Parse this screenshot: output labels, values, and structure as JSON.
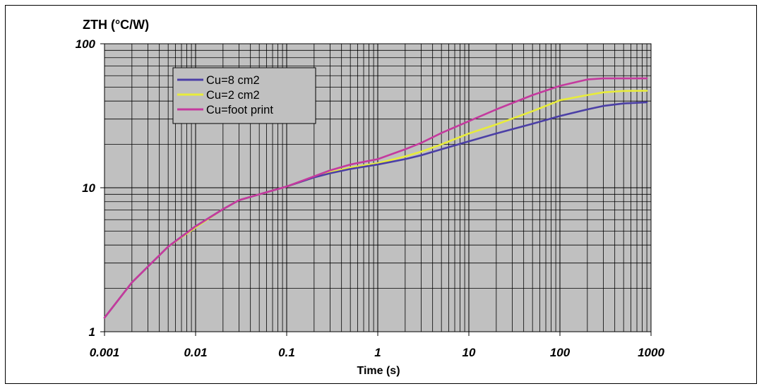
{
  "chart_data": {
    "type": "line",
    "title": "",
    "ylabel": "ZTH (°C/W)",
    "xlabel": "Time (s)",
    "x_scale": "log",
    "y_scale": "log",
    "xlim": [
      0.001,
      1000
    ],
    "ylim": [
      1,
      100
    ],
    "x_ticks": [
      "0.001",
      "0.01",
      "0.1",
      "1",
      "10",
      "100",
      "1000"
    ],
    "y_ticks": [
      "1",
      "10",
      "100"
    ],
    "grid": true,
    "legend_position": "top-left",
    "series": [
      {
        "name": "Cu=8 cm2",
        "color": "#4b3fa6",
        "points": [
          [
            0.001,
            1.25
          ],
          [
            0.002,
            2.2
          ],
          [
            0.005,
            3.9
          ],
          [
            0.01,
            5.4
          ],
          [
            0.02,
            7.1
          ],
          [
            0.03,
            8.2
          ],
          [
            0.05,
            9.0
          ],
          [
            0.1,
            10.2
          ],
          [
            0.2,
            11.8
          ],
          [
            0.3,
            12.6
          ],
          [
            0.5,
            13.5
          ],
          [
            1,
            14.5
          ],
          [
            2,
            15.8
          ],
          [
            3,
            16.8
          ],
          [
            5,
            18.5
          ],
          [
            10,
            21.0
          ],
          [
            20,
            23.8
          ],
          [
            50,
            27.8
          ],
          [
            100,
            31.5
          ],
          [
            200,
            35.0
          ],
          [
            300,
            37.0
          ],
          [
            500,
            38.5
          ],
          [
            900,
            39.2
          ]
        ]
      },
      {
        "name": "Cu=2 cm2",
        "color": "#e8ec3a",
        "points": [
          [
            0.001,
            1.25
          ],
          [
            0.002,
            2.2
          ],
          [
            0.005,
            3.9
          ],
          [
            0.01,
            5.3
          ],
          [
            0.02,
            7.1
          ],
          [
            0.03,
            8.2
          ],
          [
            0.05,
            9.0
          ],
          [
            0.1,
            10.2
          ],
          [
            0.2,
            11.8
          ],
          [
            0.3,
            12.8
          ],
          [
            0.5,
            13.8
          ],
          [
            1,
            14.8
          ],
          [
            2,
            16.5
          ],
          [
            3,
            17.8
          ],
          [
            5,
            20.0
          ],
          [
            10,
            23.8
          ],
          [
            20,
            27.5
          ],
          [
            50,
            34.0
          ],
          [
            100,
            40.5
          ],
          [
            200,
            44.0
          ],
          [
            300,
            46.0
          ],
          [
            500,
            47.0
          ],
          [
            900,
            47.2
          ]
        ]
      },
      {
        "name": "Cu=foot print",
        "color": "#c43a9e",
        "points": [
          [
            0.001,
            1.25
          ],
          [
            0.002,
            2.2
          ],
          [
            0.005,
            3.9
          ],
          [
            0.01,
            5.4
          ],
          [
            0.02,
            7.1
          ],
          [
            0.03,
            8.2
          ],
          [
            0.05,
            9.0
          ],
          [
            0.1,
            10.2
          ],
          [
            0.2,
            12.0
          ],
          [
            0.3,
            13.2
          ],
          [
            0.5,
            14.5
          ],
          [
            1,
            15.8
          ],
          [
            2,
            18.5
          ],
          [
            3,
            20.5
          ],
          [
            5,
            24.0
          ],
          [
            10,
            29.0
          ],
          [
            20,
            35.0
          ],
          [
            50,
            44.0
          ],
          [
            100,
            51.0
          ],
          [
            200,
            56.5
          ],
          [
            300,
            57.5
          ],
          [
            500,
            57.5
          ],
          [
            900,
            57.5
          ]
        ]
      }
    ]
  }
}
